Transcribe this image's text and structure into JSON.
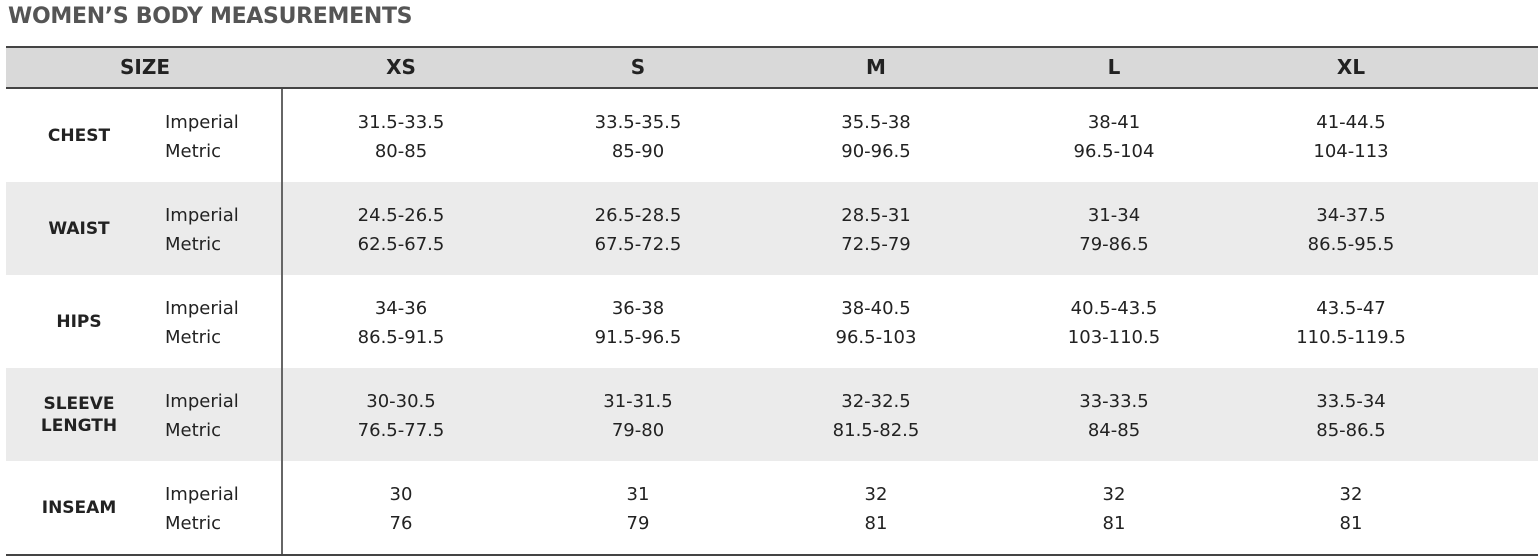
{
  "title": "WOMEN’S BODY MEASUREMENTS",
  "table": {
    "header": [
      "SIZE",
      "XS",
      "S",
      "M",
      "L",
      "XL"
    ],
    "rows": [
      {
        "label": "CHEST",
        "units": [
          "Imperial",
          "Metric"
        ],
        "values": [
          [
            "31.5-33.5",
            "80-85"
          ],
          [
            "33.5-35.5",
            "85-90"
          ],
          [
            "35.5-38",
            "90-96.5"
          ],
          [
            "38-41",
            "96.5-104"
          ],
          [
            "41-44.5",
            "104-113"
          ]
        ]
      },
      {
        "label": "WAIST",
        "units": [
          "Imperial",
          "Metric"
        ],
        "values": [
          [
            "24.5-26.5",
            "62.5-67.5"
          ],
          [
            "26.5-28.5",
            "67.5-72.5"
          ],
          [
            "28.5-31",
            "72.5-79"
          ],
          [
            "31-34",
            "79-86.5"
          ],
          [
            "34-37.5",
            "86.5-95.5"
          ]
        ]
      },
      {
        "label": "HIPS",
        "units": [
          "Imperial",
          "Metric"
        ],
        "values": [
          [
            "34-36",
            "86.5-91.5"
          ],
          [
            "36-38",
            "91.5-96.5"
          ],
          [
            "38-40.5",
            "96.5-103"
          ],
          [
            "40.5-43.5",
            "103-110.5"
          ],
          [
            "43.5-47",
            "110.5-119.5"
          ]
        ]
      },
      {
        "label": "SLEEVE LENGTH",
        "units": [
          "Imperial",
          "Metric"
        ],
        "values": [
          [
            "30-30.5",
            "76.5-77.5"
          ],
          [
            "31-31.5",
            "79-80"
          ],
          [
            "32-32.5",
            "81.5-82.5"
          ],
          [
            "33-33.5",
            "84-85"
          ],
          [
            "33.5-34",
            "85-86.5"
          ]
        ]
      },
      {
        "label": "INSEAM",
        "units": [
          "Imperial",
          "Metric"
        ],
        "values": [
          [
            "30",
            "76"
          ],
          [
            "31",
            "79"
          ],
          [
            "32",
            "81"
          ],
          [
            "32",
            "81"
          ],
          [
            "32",
            "81"
          ]
        ]
      }
    ]
  }
}
